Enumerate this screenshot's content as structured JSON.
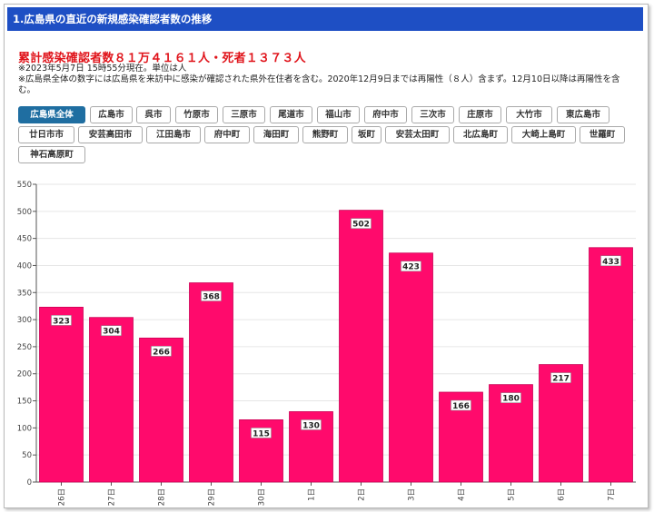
{
  "title_bar": "1.広島県の直近の新規感染確認者数の推移",
  "headline": "累計感染確認者数８１万４１６１人・死者１３７３人",
  "notes": [
    "※2023年5月7日 15時55分現在。単位は人",
    "※広島県全体の数字には広島県を来訪中に感染が確認された県外在住者を含む。2020年12月9日までは再陽性（８人）含まず。12月10日以降は再陽性を含む。"
  ],
  "tabs": [
    {
      "label": "広島県全体",
      "active": true
    },
    {
      "label": "広島市"
    },
    {
      "label": "呉市"
    },
    {
      "label": "竹原市"
    },
    {
      "label": "三原市"
    },
    {
      "label": "尾道市"
    },
    {
      "label": "福山市"
    },
    {
      "label": "府中市"
    },
    {
      "label": "三次市"
    },
    {
      "label": "庄原市"
    },
    {
      "label": "大竹市"
    },
    {
      "label": "東広島市"
    },
    {
      "label": "廿日市市"
    },
    {
      "label": "安芸高田市"
    },
    {
      "label": "江田島市"
    },
    {
      "label": "府中町"
    },
    {
      "label": "海田町"
    },
    {
      "label": "熊野町"
    },
    {
      "label": "坂町"
    },
    {
      "label": "安芸太田町"
    },
    {
      "label": "北広島町"
    },
    {
      "label": "大崎上島町"
    },
    {
      "label": "世羅町"
    },
    {
      "label": "神石高原町"
    }
  ],
  "chart_data": {
    "type": "bar",
    "categories": [
      "26日",
      "27日",
      "28日",
      "29日",
      "30日",
      "1日",
      "2日",
      "3日",
      "4日",
      "5日",
      "6日",
      "7日"
    ],
    "values": [
      323,
      304,
      266,
      368,
      115,
      130,
      502,
      423,
      166,
      180,
      217,
      433
    ],
    "ylim": [
      0,
      550
    ],
    "yticks": [
      0,
      50,
      100,
      150,
      200,
      250,
      300,
      350,
      400,
      450,
      500,
      550
    ],
    "grid": true,
    "bar_color": "#ff0a6c",
    "data_labels": true
  }
}
